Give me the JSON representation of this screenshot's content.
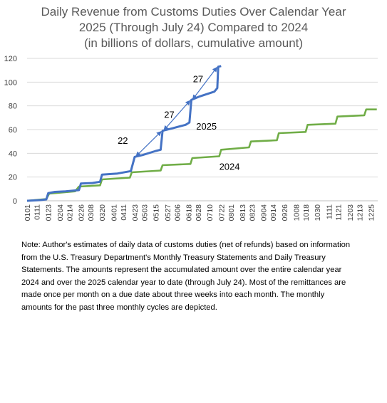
{
  "colors": {
    "y2025": "#4472C4",
    "y2024": "#70AD47",
    "grid": "#D9D9D9",
    "text": "#404040",
    "title": "#595959"
  },
  "chart_data": {
    "type": "line",
    "title_lines": [
      "Daily Revenue from Customs Duties Over Calendar Year",
      "2025 (Through July 24) Compared to 2024",
      "(in billions of dollars, cumulative amount)"
    ],
    "xlabel": "",
    "ylabel": "",
    "ylim": [
      0,
      120
    ],
    "y_ticks": [
      0,
      20,
      40,
      60,
      80,
      100,
      120
    ],
    "x_tick_labels": [
      "0101",
      "0111",
      "0123",
      "0204",
      "0214",
      "0226",
      "0308",
      "0320",
      "0401",
      "0411",
      "0423",
      "0503",
      "0515",
      "0527",
      "0606",
      "0618",
      "0628",
      "0710",
      "0722",
      "0801",
      "0813",
      "0823",
      "0904",
      "0914",
      "0926",
      "1008",
      "1018",
      "1030",
      "1111",
      "1121",
      "1203",
      "1213",
      "1225"
    ],
    "grid": "horizontal",
    "legend": "none",
    "series": [
      {
        "name": "2025",
        "points": [
          [
            "0101",
            0
          ],
          [
            "0115",
            0.6
          ],
          [
            "0121",
            1.2
          ],
          [
            "0123",
            6.5
          ],
          [
            "0130",
            7.5
          ],
          [
            "0210",
            8
          ],
          [
            "0224",
            9
          ],
          [
            "0226",
            14.5
          ],
          [
            "0310",
            15
          ],
          [
            "0318",
            16
          ],
          [
            "0320",
            22
          ],
          [
            "0405",
            23
          ],
          [
            "0419",
            25
          ],
          [
            "0423",
            37
          ],
          [
            "0501",
            38.5
          ],
          [
            "0515",
            42
          ],
          [
            "0520",
            43
          ],
          [
            "0522",
            59
          ],
          [
            "0601",
            61
          ],
          [
            "0615",
            64
          ],
          [
            "0619",
            66
          ],
          [
            "0621",
            85
          ],
          [
            "0630",
            88
          ],
          [
            "0715",
            92
          ],
          [
            "0718",
            95
          ],
          [
            "0719",
            113
          ],
          [
            "0722",
            113.5
          ]
        ]
      },
      {
        "name": "2024",
        "points": [
          [
            "0101",
            0
          ],
          [
            "0121",
            1.5
          ],
          [
            "0124",
            6
          ],
          [
            "0220",
            8
          ],
          [
            "0224",
            12
          ],
          [
            "0318",
            13
          ],
          [
            "0320",
            18
          ],
          [
            "0418",
            19.5
          ],
          [
            "0420",
            24
          ],
          [
            "0520",
            25.5
          ],
          [
            "0522",
            30
          ],
          [
            "0620",
            31
          ],
          [
            "0622",
            36
          ],
          [
            "0720",
            37.5
          ],
          [
            "0722",
            43
          ],
          [
            "0820",
            45
          ],
          [
            "0822",
            50
          ],
          [
            "0918",
            51
          ],
          [
            "0920",
            57
          ],
          [
            "1018",
            58
          ],
          [
            "1020",
            64
          ],
          [
            "1118",
            65
          ],
          [
            "1120",
            71
          ],
          [
            "1218",
            72
          ],
          [
            "1220",
            77
          ],
          [
            "1231",
            77
          ]
        ]
      }
    ],
    "annotations": [
      {
        "text": "22",
        "kind": "difference"
      },
      {
        "text": "27",
        "kind": "difference"
      },
      {
        "text": "27",
        "kind": "difference"
      },
      {
        "text": "2025",
        "kind": "series-label"
      },
      {
        "text": "2024",
        "kind": "series-label"
      }
    ]
  },
  "note": "Note: Author's estimates of daily data of customs duties (net of refunds) based on information from the U.S. Treasury Department's Monthly Treasury Statements and Daily Treasury Statements. The amounts represent the accumulated amount over the entire calendar year 2024 and over the 2025 calendar year to date (through July 24). Most of the remittances are made once per month on a due date about three weeks into each month. The monthly amounts for the past three monthly cycles are depicted."
}
